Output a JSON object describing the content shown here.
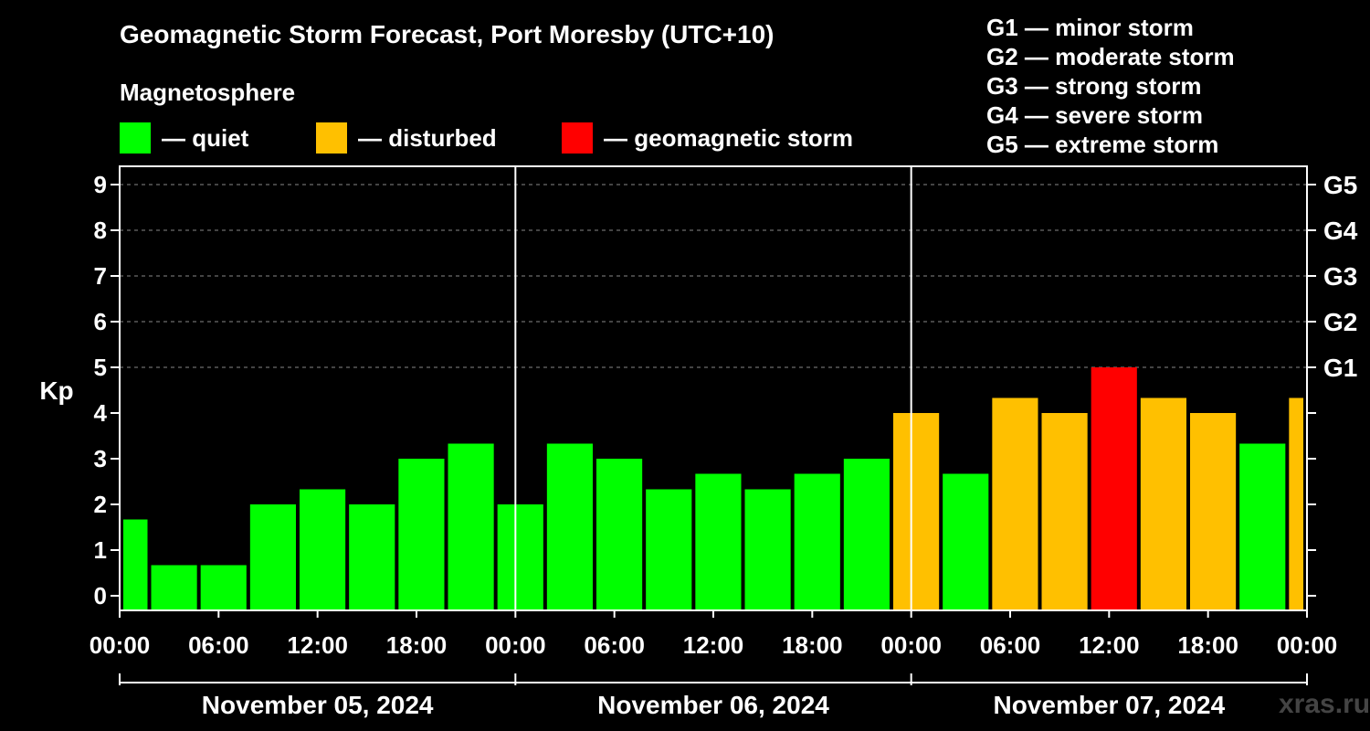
{
  "chart_data": {
    "type": "bar",
    "title": "Geomagnetic Storm Forecast, Port Moresby (UTC+10)",
    "subtitle": "Magnetosphere",
    "ylabel": "Kp",
    "ylim": [
      0,
      9
    ],
    "yticks": [
      "0",
      "1",
      "2",
      "3",
      "4",
      "5",
      "6",
      "7",
      "8",
      "9"
    ],
    "right_ticks": [
      {
        "kp": 5,
        "label": "G1"
      },
      {
        "kp": 6,
        "label": "G2"
      },
      {
        "kp": 7,
        "label": "G3"
      },
      {
        "kp": 8,
        "label": "G4"
      },
      {
        "kp": 9,
        "label": "G5"
      }
    ],
    "xticks": [
      "00:00",
      "06:00",
      "12:00",
      "18:00",
      "00:00",
      "06:00",
      "12:00",
      "18:00",
      "00:00",
      "06:00",
      "12:00",
      "18:00",
      "00:00"
    ],
    "days": [
      "November 05, 2024",
      "November 06, 2024",
      "November 07, 2024"
    ],
    "values": [
      1.67,
      0.67,
      0.67,
      2.0,
      2.33,
      2.0,
      3.0,
      3.33,
      2.0,
      3.33,
      3.0,
      2.33,
      2.67,
      2.33,
      2.67,
      3.0,
      4.0,
      2.67,
      4.33,
      4.0,
      5.0,
      4.33,
      4.0,
      3.33,
      4.33
    ],
    "levels": [
      "quiet",
      "quiet",
      "quiet",
      "quiet",
      "quiet",
      "quiet",
      "quiet",
      "quiet",
      "quiet",
      "quiet",
      "quiet",
      "quiet",
      "quiet",
      "quiet",
      "quiet",
      "quiet",
      "disturbed",
      "quiet",
      "disturbed",
      "disturbed",
      "storm",
      "disturbed",
      "disturbed",
      "quiet",
      "disturbed"
    ],
    "colors": {
      "quiet": "#00ff00",
      "disturbed": "#ffc000",
      "storm": "#ff0000"
    }
  },
  "legend": {
    "quiet": "— quiet",
    "disturbed": "— disturbed",
    "storm": "— geomagnetic storm"
  },
  "storm_scale": [
    "G1 — minor storm",
    "G2 — moderate storm",
    "G3 — strong storm",
    "G4 — severe storm",
    "G5 — extreme storm"
  ],
  "watermark": "xras.ru"
}
